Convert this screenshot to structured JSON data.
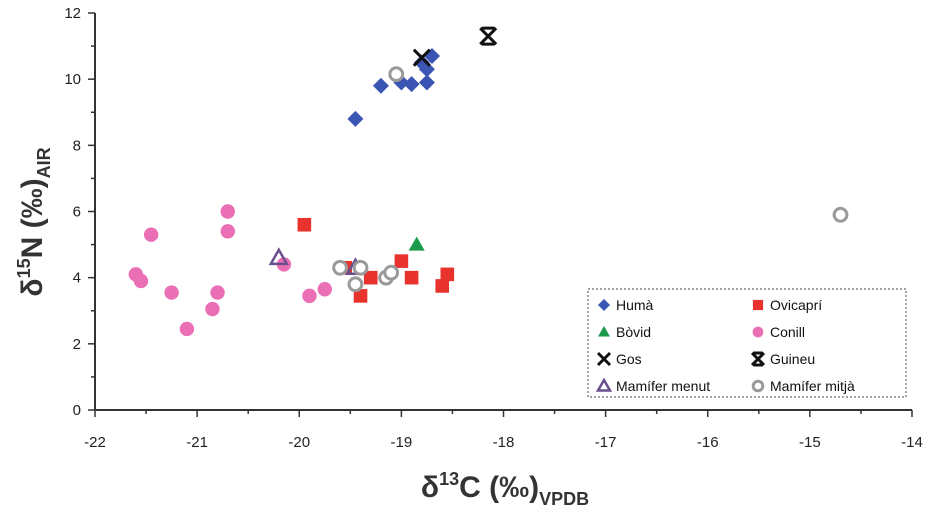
{
  "chart_data": {
    "type": "scatter",
    "xlabel": {
      "main": "δ",
      "sup": "13",
      "rest": "C (‰)",
      "sub": "VPDB"
    },
    "ylabel": {
      "main": "δ",
      "sup": "15",
      "rest": "N (‰)",
      "sub": "AIR"
    },
    "xlim": [
      -22,
      -14
    ],
    "ylim": [
      0,
      12
    ],
    "xticks": [
      -22,
      -21,
      -20,
      -19,
      -18,
      -17,
      -16,
      -15,
      -14
    ],
    "yticks": [
      0,
      2,
      4,
      6,
      8,
      10,
      12
    ],
    "grid": false,
    "legend_position": "bottom-right",
    "series": [
      {
        "name": "Humà",
        "marker": "diamond",
        "color": "#3a55b4",
        "points": [
          [
            -19.45,
            8.8
          ],
          [
            -19.2,
            9.8
          ],
          [
            -19.0,
            9.9
          ],
          [
            -18.9,
            9.85
          ],
          [
            -18.75,
            9.9
          ],
          [
            -18.75,
            10.3
          ],
          [
            -18.7,
            10.7
          ],
          [
            -18.8,
            10.5
          ]
        ]
      },
      {
        "name": "Ovicaprí",
        "marker": "square",
        "color": "#e8322d",
        "points": [
          [
            -19.95,
            5.6
          ],
          [
            -19.55,
            4.3
          ],
          [
            -19.4,
            3.45
          ],
          [
            -19.3,
            4.0
          ],
          [
            -19.0,
            4.5
          ],
          [
            -18.9,
            4.0
          ],
          [
            -18.6,
            3.75
          ],
          [
            -18.55,
            4.1
          ]
        ]
      },
      {
        "name": "Bòvid",
        "marker": "triangle",
        "color": "#1a9a4a",
        "points": [
          [
            -18.85,
            5.0
          ]
        ]
      },
      {
        "name": "Conill",
        "marker": "circle",
        "color": "#ea6fb5",
        "points": [
          [
            -21.6,
            4.1
          ],
          [
            -21.55,
            3.9
          ],
          [
            -21.45,
            5.3
          ],
          [
            -21.25,
            3.55
          ],
          [
            -21.1,
            2.45
          ],
          [
            -20.85,
            3.05
          ],
          [
            -20.8,
            3.55
          ],
          [
            -20.7,
            6.0
          ],
          [
            -20.7,
            5.4
          ],
          [
            -20.15,
            4.4
          ],
          [
            -19.9,
            3.45
          ],
          [
            -19.75,
            3.65
          ]
        ]
      },
      {
        "name": "Gos",
        "marker": "x",
        "color": "#111111",
        "points": [
          [
            -18.8,
            10.65
          ]
        ]
      },
      {
        "name": "Guineu",
        "marker": "bowtie",
        "color": "#111111",
        "points": [
          [
            -18.15,
            11.3
          ]
        ]
      },
      {
        "name": "Mamífer menut",
        "marker": "open-triangle",
        "color": "#6a4f8e",
        "points": [
          [
            -20.2,
            4.6
          ],
          [
            -19.45,
            4.3
          ]
        ]
      },
      {
        "name": "Mamífer mitjà",
        "marker": "open-circle",
        "color": "#9a9a9a",
        "points": [
          [
            -19.05,
            10.15
          ],
          [
            -19.6,
            4.3
          ],
          [
            -19.4,
            4.3
          ],
          [
            -19.45,
            3.8
          ],
          [
            -19.15,
            4.0
          ],
          [
            -19.1,
            4.15
          ],
          [
            -14.7,
            5.9
          ]
        ]
      }
    ]
  }
}
